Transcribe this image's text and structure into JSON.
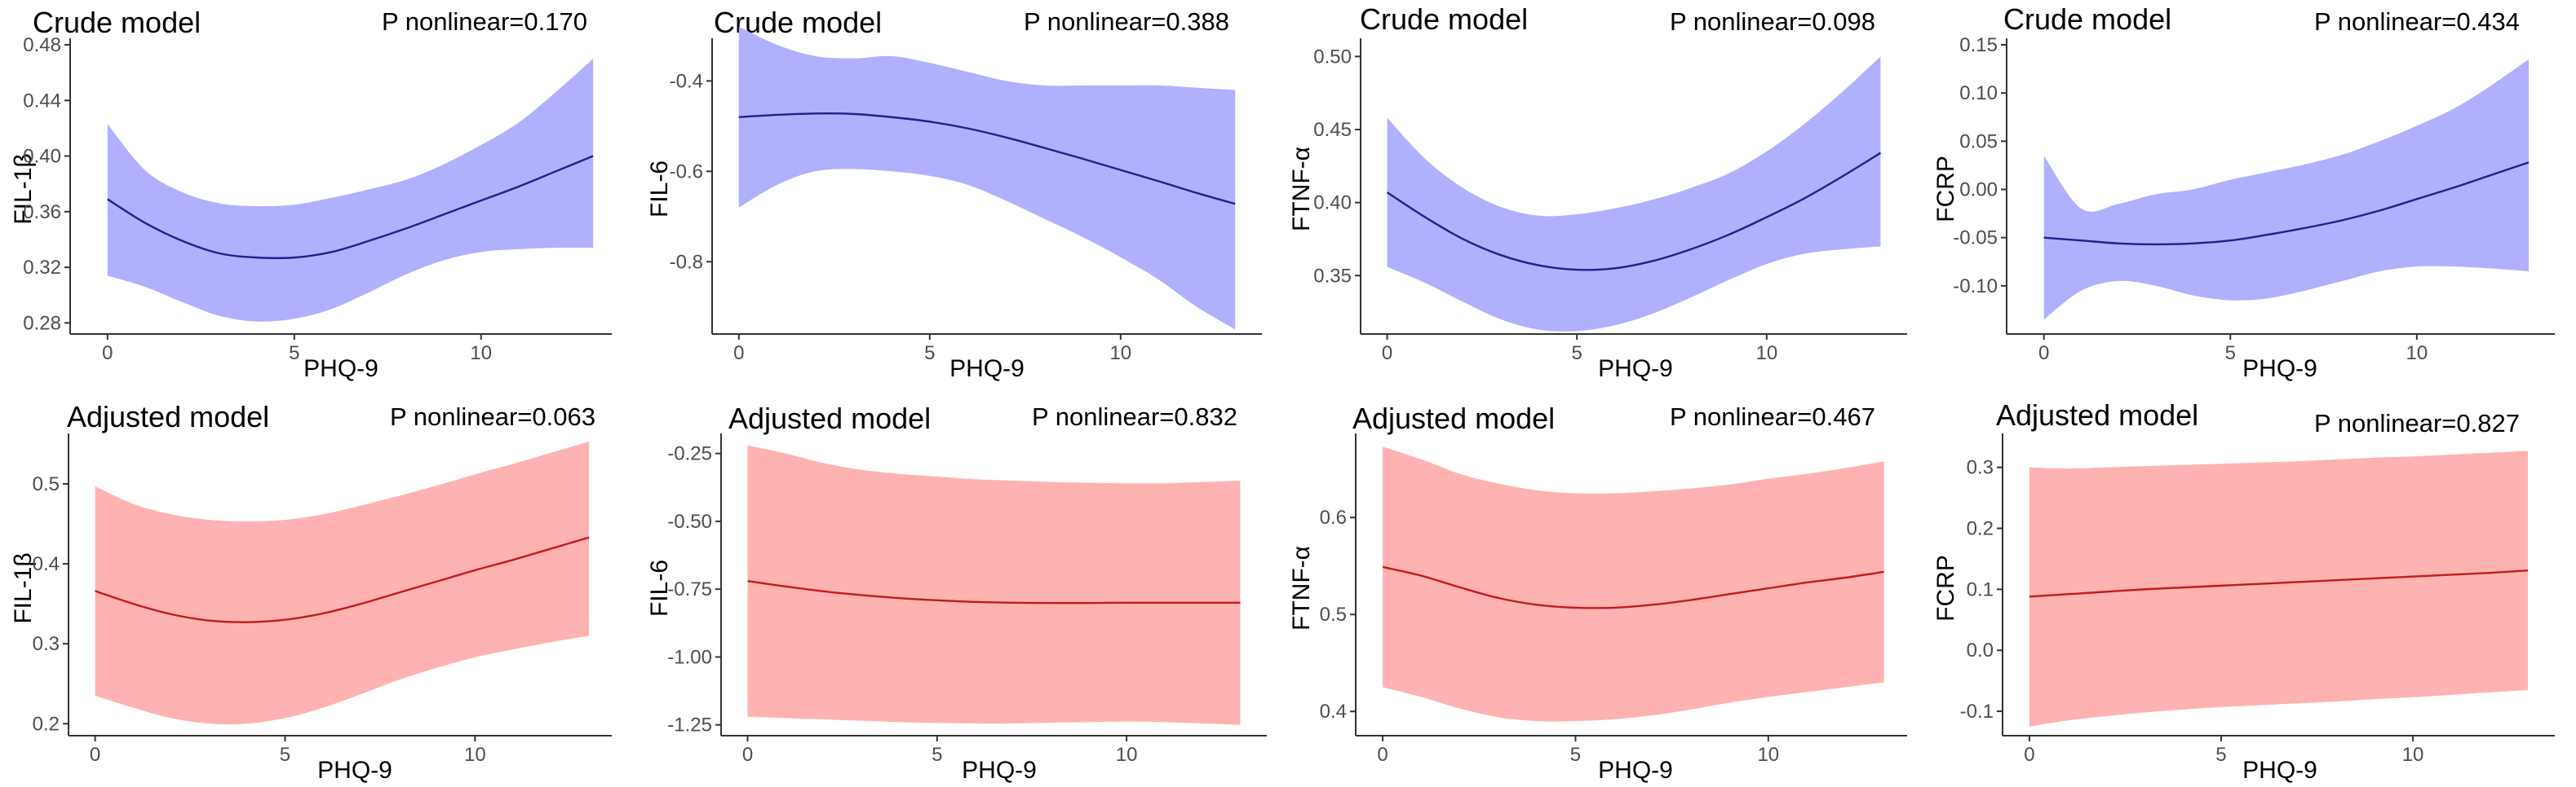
{
  "colors": {
    "crude_band": "#b0b0ff",
    "crude_line": "#1f1f8f",
    "adjusted_band": "#ffb2b2",
    "adjusted_line": "#c41a1a"
  },
  "chart_data": [
    {
      "type": "area",
      "model": "crude",
      "title": "Crude model",
      "p_label": "P nonlinear=0.170",
      "xlabel": "PHQ-9",
      "ylabel": "FIL-1β",
      "xlim": [
        -1,
        13.5
      ],
      "ylim": [
        0.272,
        0.48
      ],
      "xticks": [
        0,
        5,
        10
      ],
      "xtick_labels": [
        "0",
        "5",
        "10"
      ],
      "yticks": [
        0.28,
        0.32,
        0.36,
        0.4,
        0.44,
        0.48
      ],
      "ytick_labels": [
        "0.28",
        "0.32",
        "0.36",
        "0.40",
        "0.44",
        "0.48"
      ],
      "x": [
        0,
        1,
        2,
        3,
        4,
        5,
        6,
        7,
        8,
        9,
        10,
        11,
        12,
        13
      ],
      "fit": [
        0.369,
        0.352,
        0.339,
        0.33,
        0.327,
        0.327,
        0.331,
        0.339,
        0.348,
        0.358,
        0.368,
        0.378,
        0.389,
        0.4
      ],
      "lower": [
        0.314,
        0.306,
        0.295,
        0.285,
        0.281,
        0.283,
        0.29,
        0.302,
        0.315,
        0.325,
        0.331,
        0.333,
        0.334,
        0.334
      ],
      "upper": [
        0.423,
        0.39,
        0.374,
        0.366,
        0.364,
        0.365,
        0.37,
        0.376,
        0.383,
        0.394,
        0.408,
        0.424,
        0.446,
        0.47
      ]
    },
    {
      "type": "area",
      "model": "crude",
      "title": "Crude model",
      "p_label": "P nonlinear=0.388",
      "xlabel": "PHQ-9",
      "ylabel": "FIL-6",
      "xlim": [
        -0.7,
        13.7
      ],
      "ylim": [
        -0.96,
        -0.32
      ],
      "xticks": [
        0,
        5,
        10
      ],
      "xtick_labels": [
        "0",
        "5",
        "10"
      ],
      "yticks": [
        -0.8,
        -0.6,
        -0.4
      ],
      "ytick_labels": [
        "-0.8",
        "-0.6",
        "-0.4"
      ],
      "x": [
        0,
        1,
        2,
        3,
        4,
        5,
        6,
        7,
        8,
        9,
        10,
        11,
        12,
        13
      ],
      "fit": [
        -0.48,
        -0.475,
        -0.472,
        -0.473,
        -0.48,
        -0.49,
        -0.505,
        -0.525,
        -0.548,
        -0.572,
        -0.597,
        -0.622,
        -0.648,
        -0.672
      ],
      "lower": [
        -0.68,
        -0.63,
        -0.6,
        -0.595,
        -0.6,
        -0.61,
        -0.63,
        -0.665,
        -0.705,
        -0.745,
        -0.79,
        -0.84,
        -0.9,
        -0.95
      ],
      "upper": [
        -0.28,
        -0.32,
        -0.345,
        -0.35,
        -0.345,
        -0.36,
        -0.38,
        -0.4,
        -0.41,
        -0.41,
        -0.41,
        -0.41,
        -0.415,
        -0.42
      ]
    },
    {
      "type": "area",
      "model": "crude",
      "title": "Crude model",
      "p_label": "P nonlinear=0.098",
      "xlabel": "PHQ-9",
      "ylabel": "FTNF-α",
      "xlim": [
        -0.7,
        13.7
      ],
      "ylim": [
        0.31,
        0.508
      ],
      "xticks": [
        0,
        5,
        10
      ],
      "xtick_labels": [
        "0",
        "5",
        "10"
      ],
      "yticks": [
        0.35,
        0.4,
        0.45,
        0.5
      ],
      "ytick_labels": [
        "0.35",
        "0.40",
        "0.45",
        "0.50"
      ],
      "x": [
        0,
        1,
        2,
        3,
        4,
        5,
        6,
        7,
        8,
        9,
        10,
        11,
        12,
        13
      ],
      "fit": [
        0.407,
        0.39,
        0.375,
        0.364,
        0.357,
        0.354,
        0.355,
        0.36,
        0.368,
        0.378,
        0.39,
        0.403,
        0.418,
        0.434
      ],
      "lower": [
        0.356,
        0.345,
        0.332,
        0.32,
        0.313,
        0.312,
        0.316,
        0.324,
        0.335,
        0.347,
        0.358,
        0.365,
        0.368,
        0.37
      ],
      "upper": [
        0.458,
        0.43,
        0.41,
        0.397,
        0.391,
        0.392,
        0.396,
        0.402,
        0.41,
        0.42,
        0.435,
        0.454,
        0.476,
        0.5
      ]
    },
    {
      "type": "area",
      "model": "crude",
      "title": "Crude model",
      "p_label": "P nonlinear=0.434",
      "xlabel": "PHQ-9",
      "ylabel": "FCRP",
      "xlim": [
        -1,
        13.7
      ],
      "ylim": [
        -0.15,
        0.15
      ],
      "xticks": [
        0,
        5,
        10
      ],
      "xtick_labels": [
        "0",
        "5",
        "10"
      ],
      "yticks": [
        -0.1,
        -0.05,
        0.0,
        0.05,
        0.1,
        0.15
      ],
      "ytick_labels": [
        "-0.10",
        "-0.05",
        "0.00",
        "0.05",
        "0.10",
        "0.15"
      ],
      "x": [
        0,
        1,
        2,
        3,
        4,
        5,
        6,
        7,
        8,
        9,
        10,
        11,
        12,
        13
      ],
      "fit": [
        -0.05,
        -0.053,
        -0.056,
        -0.057,
        -0.056,
        -0.053,
        -0.047,
        -0.04,
        -0.032,
        -0.022,
        -0.01,
        0.002,
        0.015,
        0.028
      ],
      "lower": [
        -0.135,
        -0.105,
        -0.095,
        -0.1,
        -0.11,
        -0.115,
        -0.113,
        -0.105,
        -0.095,
        -0.085,
        -0.08,
        -0.08,
        -0.082,
        -0.085
      ],
      "upper": [
        0.035,
        -0.02,
        -0.015,
        -0.005,
        0.0,
        0.01,
        0.018,
        0.026,
        0.036,
        0.05,
        0.066,
        0.084,
        0.108,
        0.135
      ]
    },
    {
      "type": "area",
      "model": "adjusted",
      "title": "Adjusted model",
      "p_label": "P nonlinear=0.063",
      "xlabel": "PHQ-9",
      "ylabel": "FIL-1β",
      "xlim": [
        -0.7,
        13.6
      ],
      "ylim": [
        0.185,
        0.555
      ],
      "xticks": [
        0,
        5,
        10
      ],
      "xtick_labels": [
        "0",
        "5",
        "10"
      ],
      "yticks": [
        0.2,
        0.3,
        0.4,
        0.5
      ],
      "ytick_labels": [
        "0.2",
        "0.3",
        "0.4",
        "0.5"
      ],
      "x": [
        0,
        1,
        2,
        3,
        4,
        5,
        6,
        7,
        8,
        9,
        10,
        11,
        12,
        13
      ],
      "fit": [
        0.366,
        0.35,
        0.337,
        0.329,
        0.327,
        0.33,
        0.338,
        0.35,
        0.364,
        0.378,
        0.392,
        0.405,
        0.419,
        0.433
      ],
      "lower": [
        0.235,
        0.22,
        0.207,
        0.2,
        0.2,
        0.207,
        0.22,
        0.237,
        0.255,
        0.27,
        0.283,
        0.293,
        0.302,
        0.31
      ],
      "upper": [
        0.497,
        0.475,
        0.462,
        0.455,
        0.453,
        0.455,
        0.462,
        0.473,
        0.485,
        0.498,
        0.512,
        0.525,
        0.539,
        0.553
      ]
    },
    {
      "type": "area",
      "model": "adjusted",
      "title": "Adjusted model",
      "p_label": "P nonlinear=0.832",
      "xlabel": "PHQ-9",
      "ylabel": "FIL-6",
      "xlim": [
        -0.7,
        13.7
      ],
      "ylim": [
        -1.29,
        -0.2
      ],
      "xticks": [
        0,
        5,
        10
      ],
      "xtick_labels": [
        "0",
        "5",
        "10"
      ],
      "yticks": [
        -1.25,
        -1.0,
        -0.75,
        -0.5,
        -0.25
      ],
      "ytick_labels": [
        "-1.25",
        "-1.00",
        "-0.75",
        "-0.50",
        "-0.25"
      ],
      "x": [
        0,
        1,
        2,
        3,
        4,
        5,
        6,
        7,
        8,
        9,
        10,
        11,
        12,
        13
      ],
      "fit": [
        -0.72,
        -0.74,
        -0.758,
        -0.772,
        -0.783,
        -0.791,
        -0.797,
        -0.8,
        -0.801,
        -0.801,
        -0.8,
        -0.8,
        -0.8,
        -0.8
      ],
      "lower": [
        -1.22,
        -1.225,
        -1.23,
        -1.235,
        -1.24,
        -1.243,
        -1.245,
        -1.245,
        -1.242,
        -1.24,
        -1.238,
        -1.24,
        -1.245,
        -1.25
      ],
      "upper": [
        -0.22,
        -0.25,
        -0.285,
        -0.31,
        -0.325,
        -0.335,
        -0.345,
        -0.35,
        -0.355,
        -0.358,
        -0.36,
        -0.36,
        -0.355,
        -0.35
      ]
    },
    {
      "type": "area",
      "model": "adjusted",
      "title": "Adjusted model",
      "p_label": "P nonlinear=0.467",
      "xlabel": "PHQ-9",
      "ylabel": "FTNF-α",
      "xlim": [
        -0.7,
        13.6
      ],
      "ylim": [
        0.375,
        0.68
      ],
      "xticks": [
        0,
        5,
        10
      ],
      "xtick_labels": [
        "0",
        "5",
        "10"
      ],
      "yticks": [
        0.4,
        0.5,
        0.6
      ],
      "ytick_labels": [
        "0.4",
        "0.5",
        "0.6"
      ],
      "x": [
        0,
        1,
        2,
        3,
        4,
        5,
        6,
        7,
        8,
        9,
        10,
        11,
        12,
        13
      ],
      "fit": [
        0.549,
        0.54,
        0.528,
        0.517,
        0.51,
        0.507,
        0.507,
        0.51,
        0.515,
        0.521,
        0.527,
        0.533,
        0.538,
        0.544
      ],
      "lower": [
        0.425,
        0.415,
        0.403,
        0.394,
        0.39,
        0.39,
        0.392,
        0.396,
        0.402,
        0.409,
        0.415,
        0.42,
        0.425,
        0.43
      ],
      "upper": [
        0.673,
        0.66,
        0.645,
        0.635,
        0.628,
        0.625,
        0.625,
        0.627,
        0.63,
        0.634,
        0.64,
        0.645,
        0.651,
        0.658
      ]
    },
    {
      "type": "area",
      "model": "adjusted",
      "title": "Adjusted model",
      "p_label": "P nonlinear=0.827",
      "xlabel": "PHQ-9",
      "ylabel": "FCRP",
      "xlim": [
        -0.7,
        13.7
      ],
      "ylim": [
        -0.14,
        0.345
      ],
      "xticks": [
        0,
        5,
        10
      ],
      "xtick_labels": [
        "0",
        "5",
        "10"
      ],
      "yticks": [
        -0.1,
        0.0,
        0.1,
        0.2,
        0.3
      ],
      "ytick_labels": [
        "-0.1",
        "0.0",
        "0.1",
        "0.2",
        "0.3"
      ],
      "x": [
        0,
        1,
        2,
        3,
        4,
        5,
        6,
        7,
        8,
        9,
        10,
        11,
        12,
        13
      ],
      "fit": [
        0.088,
        0.092,
        0.096,
        0.1,
        0.103,
        0.106,
        0.109,
        0.112,
        0.115,
        0.118,
        0.121,
        0.124,
        0.127,
        0.131
      ],
      "lower": [
        -0.125,
        -0.115,
        -0.108,
        -0.102,
        -0.097,
        -0.093,
        -0.09,
        -0.087,
        -0.084,
        -0.08,
        -0.077,
        -0.073,
        -0.069,
        -0.065
      ],
      "upper": [
        0.3,
        0.298,
        0.3,
        0.302,
        0.304,
        0.306,
        0.308,
        0.31,
        0.313,
        0.316,
        0.318,
        0.321,
        0.324,
        0.327
      ]
    }
  ]
}
